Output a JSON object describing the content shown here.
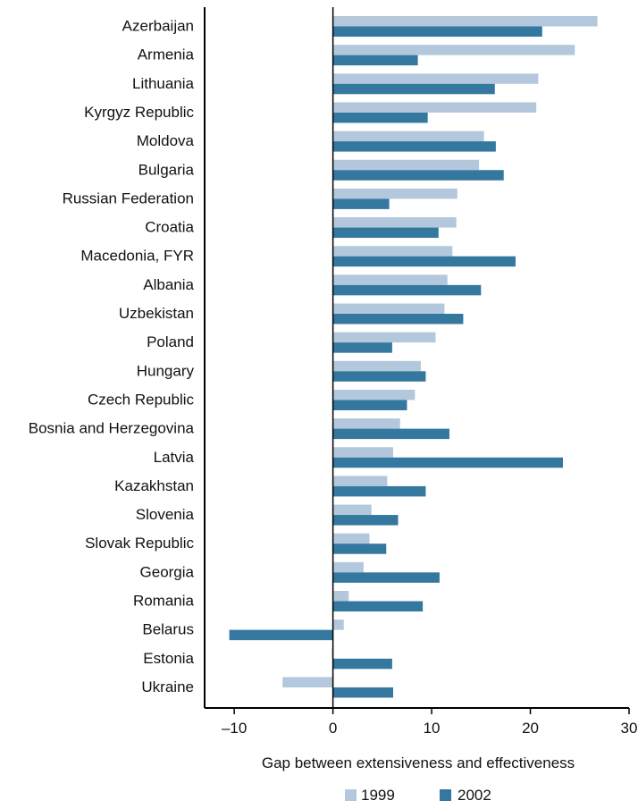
{
  "chart_data": {
    "type": "bar",
    "orientation": "horizontal",
    "title": "",
    "xlabel": "Gap between extensiveness and effectiveness",
    "ylabel": "",
    "xlim": [
      -13,
      30
    ],
    "xticks": [
      -10,
      0,
      10,
      20,
      30
    ],
    "xtick_labels": [
      "–10",
      "0",
      "10",
      "20",
      "30"
    ],
    "grid": false,
    "legend_position": "bottom-center",
    "categories": [
      "Azerbaijan",
      "Armenia",
      "Lithuania",
      "Kyrgyz Republic",
      "Moldova",
      "Bulgaria",
      "Russian Federation",
      "Croatia",
      "Macedonia, FYR",
      "Albania",
      "Uzbekistan",
      "Poland",
      "Hungary",
      "Czech Republic",
      "Bosnia and Herzegovina",
      "Latvia",
      "Kazakhstan",
      "Slovenia",
      "Slovak Republic",
      "Georgia",
      "Romania",
      "Belarus",
      "Estonia",
      "Ukraine"
    ],
    "series": [
      {
        "name": "1999",
        "color": "#b3c8dc",
        "values": [
          26.8,
          24.5,
          20.8,
          20.6,
          15.3,
          14.8,
          12.6,
          12.5,
          12.1,
          11.6,
          11.3,
          10.4,
          8.9,
          8.3,
          6.8,
          6.1,
          5.5,
          3.9,
          3.7,
          3.1,
          1.6,
          1.1,
          -0.1,
          -5.1
        ]
      },
      {
        "name": "2002",
        "color": "#34779f",
        "values": [
          21.2,
          8.6,
          16.4,
          9.6,
          16.5,
          17.3,
          5.7,
          10.7,
          18.5,
          15.0,
          13.2,
          6.0,
          9.4,
          7.5,
          11.8,
          23.3,
          9.4,
          6.6,
          5.4,
          10.8,
          9.1,
          -10.5,
          6.0,
          6.1
        ]
      }
    ]
  }
}
